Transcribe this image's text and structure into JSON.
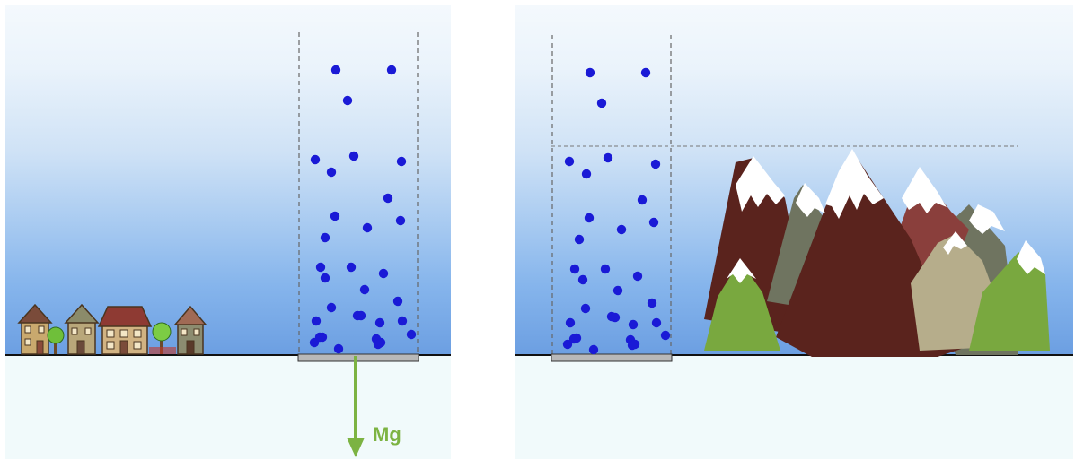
{
  "labels": {
    "force": "Mg"
  },
  "colors": {
    "molecule": "#1a1ad6",
    "arrow": "#7cb342",
    "ground": "#111111",
    "column_wall": "#666666",
    "mountain_dark": "#5a231d",
    "mountain_red": "#8a3f3c",
    "mountain_gray": "#6f7460",
    "mountain_tan": "#b6ad8b",
    "mountain_green": "#79a83f",
    "snow": "#ffffff"
  },
  "icons": {
    "left": [
      "house-icon",
      "tree-icon",
      "house-icon",
      "house-icon",
      "tree-icon",
      "house-icon"
    ],
    "right": [
      "mountain-range-icon"
    ]
  },
  "molecule_counts": {
    "left_column": 32,
    "right_column": 32
  }
}
